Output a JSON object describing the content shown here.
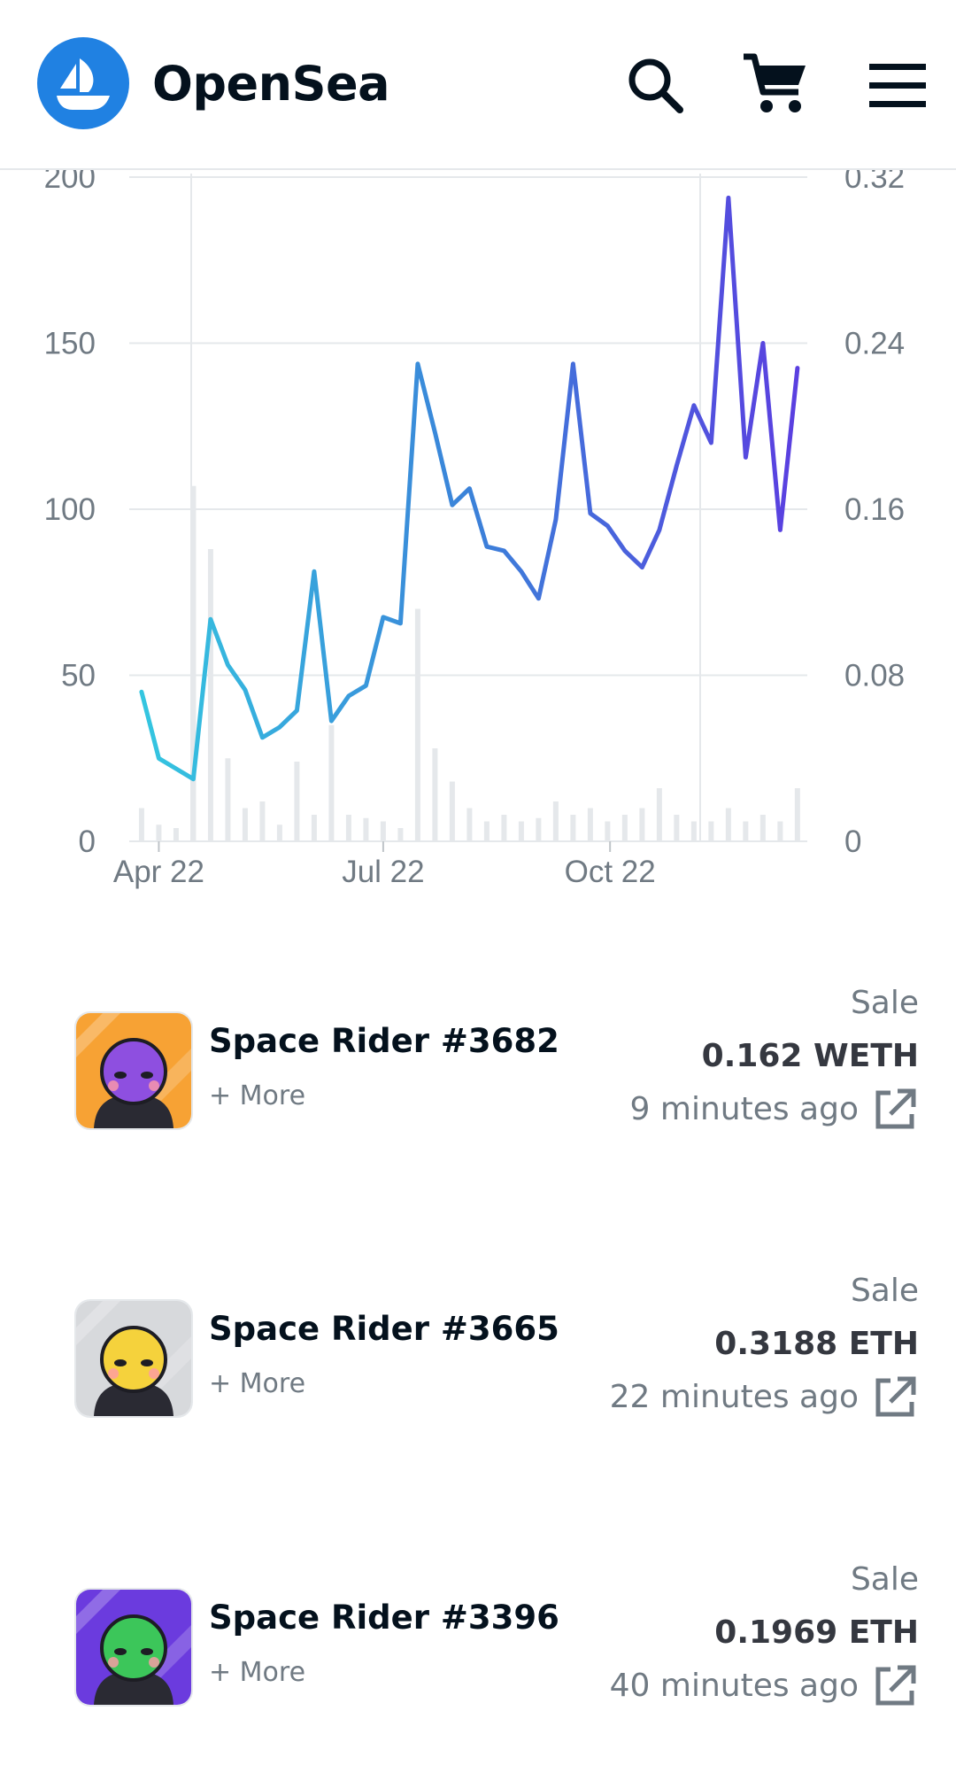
{
  "header": {
    "brand": "OpenSea",
    "icons": {
      "logo": "opensea-logo",
      "search": "search-icon",
      "cart": "cart-icon",
      "menu": "menu-icon"
    }
  },
  "chart_data": {
    "type": "line",
    "x_ticks": [
      "Apr 22",
      "Jul 22",
      "Oct 22"
    ],
    "y_left_ticks": [
      "0",
      "50",
      "100",
      "150",
      "200"
    ],
    "y_right_ticks": [
      "0",
      "0.08",
      "0.16",
      "0.24",
      "0.32"
    ],
    "ylim_left": [
      0,
      200
    ],
    "ylim_right": [
      0,
      0.32
    ],
    "grid": true,
    "series": [
      {
        "axis": "right",
        "x": [
          "2022-03-25",
          "2022-04-01",
          "2022-04-08",
          "2022-04-15",
          "2022-04-22",
          "2022-04-29",
          "2022-05-06",
          "2022-05-13",
          "2022-05-20",
          "2022-05-27",
          "2022-06-03",
          "2022-06-10",
          "2022-06-17",
          "2022-06-24",
          "2022-07-01",
          "2022-07-08",
          "2022-07-15",
          "2022-07-22",
          "2022-07-29",
          "2022-08-05",
          "2022-08-12",
          "2022-08-19",
          "2022-08-26",
          "2022-09-02",
          "2022-09-09",
          "2022-09-16",
          "2022-09-23",
          "2022-09-30",
          "2022-10-07",
          "2022-10-14",
          "2022-10-21",
          "2022-10-28",
          "2022-11-04",
          "2022-11-11",
          "2022-11-18",
          "2022-11-25",
          "2022-12-02",
          "2022-12-09",
          "2022-12-16"
        ],
        "values": [
          0.072,
          0.04,
          0.035,
          0.03,
          0.107,
          0.085,
          0.073,
          0.05,
          0.055,
          0.063,
          0.13,
          0.058,
          0.07,
          0.075,
          0.108,
          0.105,
          0.23,
          0.197,
          0.162,
          0.17,
          0.142,
          0.14,
          0.13,
          0.117,
          0.155,
          0.23,
          0.158,
          0.152,
          0.14,
          0.132,
          0.15,
          0.181,
          0.21,
          0.192,
          0.31,
          0.185,
          0.24,
          0.15,
          0.228
        ]
      },
      {
        "axis": "left",
        "type": "bar",
        "name_hidden": true,
        "x": [
          "2022-03-25",
          "2022-04-01",
          "2022-04-08",
          "2022-04-15",
          "2022-04-22",
          "2022-04-29",
          "2022-05-06",
          "2022-05-13",
          "2022-05-20",
          "2022-05-27",
          "2022-06-03",
          "2022-06-10",
          "2022-06-17",
          "2022-06-24",
          "2022-07-01",
          "2022-07-08",
          "2022-07-15",
          "2022-07-22",
          "2022-07-29",
          "2022-08-05",
          "2022-08-12",
          "2022-08-19",
          "2022-08-26",
          "2022-09-02",
          "2022-09-09",
          "2022-09-16",
          "2022-09-23",
          "2022-09-30",
          "2022-10-07",
          "2022-10-14",
          "2022-10-21",
          "2022-10-28",
          "2022-11-04",
          "2022-11-11",
          "2022-11-18",
          "2022-11-25",
          "2022-12-02",
          "2022-12-09",
          "2022-12-16"
        ],
        "values": [
          10,
          5,
          4,
          107,
          88,
          25,
          10,
          12,
          5,
          24,
          8,
          35,
          8,
          7,
          6,
          4,
          70,
          28,
          18,
          10,
          6,
          8,
          6,
          7,
          12,
          8,
          10,
          6,
          8,
          10,
          16,
          8,
          6,
          6,
          10,
          6,
          8,
          6,
          16
        ]
      }
    ]
  },
  "sales": [
    {
      "name": "Space Rider #3682",
      "more": "+ More",
      "event": "Sale",
      "price": "0.162 WETH",
      "time": "9 minutes ago",
      "bg": "#f7a234",
      "face": "#8e4fe0"
    },
    {
      "name": "Space Rider #3665",
      "more": "+ More",
      "event": "Sale",
      "price": "0.3188 ETH",
      "time": "22 minutes ago",
      "bg": "#d7d9dc",
      "face": "#f5d23c"
    },
    {
      "name": "Space Rider #3396",
      "more": "+ More",
      "event": "Sale",
      "price": "0.1969 ETH",
      "time": "40 minutes ago",
      "bg": "#6b3bde",
      "face": "#3cc65a"
    }
  ]
}
